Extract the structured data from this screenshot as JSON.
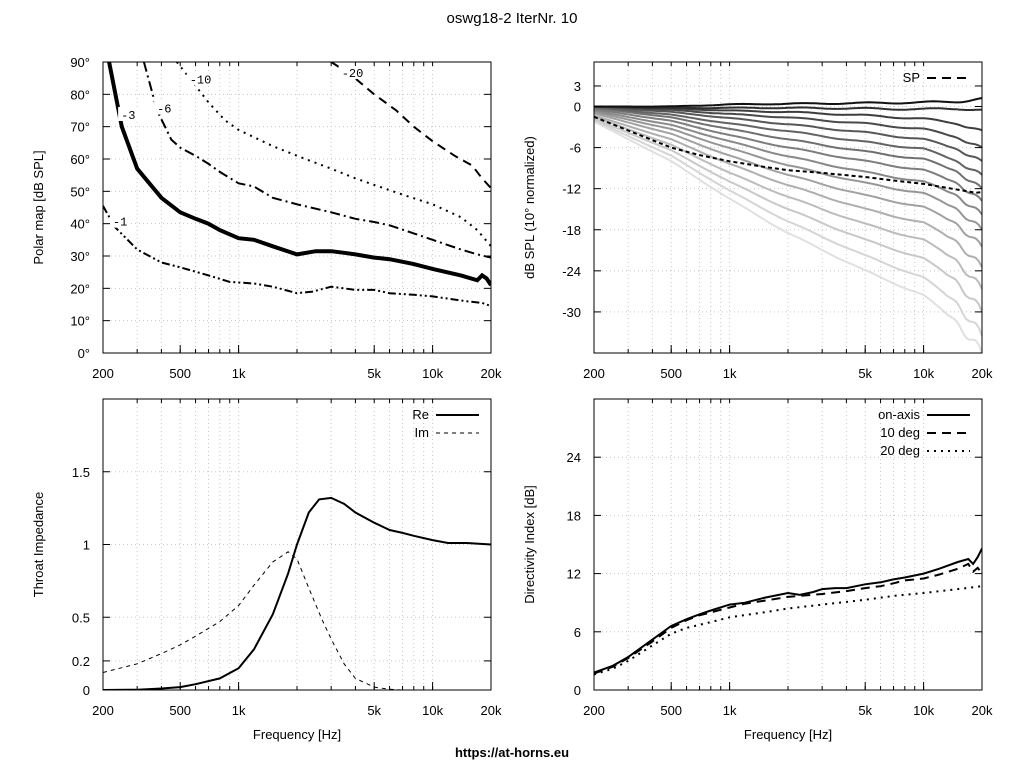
{
  "page": {
    "title": "oswg18-2 IterNr. 10",
    "footer": "https://at-horns.eu"
  },
  "chart_data": [
    {
      "id": "polar",
      "type": "line",
      "xscale": "log",
      "xlim": [
        200,
        20000
      ],
      "ylim": [
        0,
        90
      ],
      "xticks": [
        200,
        500,
        1000,
        5000,
        10000,
        20000
      ],
      "xticklabels": [
        "200",
        "500",
        "1k",
        "5k",
        "10k",
        "20k"
      ],
      "yticks": [
        0,
        10,
        20,
        30,
        40,
        50,
        60,
        70,
        80,
        90
      ],
      "yticklabels": [
        "0°",
        "10°",
        "20°",
        "30°",
        "40°",
        "50°",
        "60°",
        "70°",
        "80°",
        "90°"
      ],
      "xlabel": "",
      "ylabel": "Polar map [dB SPL]",
      "grid": true,
      "series": [
        {
          "label": "-1",
          "style": "dashdotdot",
          "points": [
            [
              200,
              45.5
            ],
            [
              230,
              39
            ],
            [
              300,
              32
            ],
            [
              400,
              28
            ],
            [
              500,
              26.5
            ],
            [
              700,
              24
            ],
            [
              900,
              22
            ],
            [
              1200,
              21.5
            ],
            [
              1500,
              20.5
            ],
            [
              2000,
              18.5
            ],
            [
              2400,
              19
            ],
            [
              3000,
              20.5
            ],
            [
              4000,
              19.5
            ],
            [
              5000,
              19.5
            ],
            [
              6000,
              18.5
            ],
            [
              8000,
              18
            ],
            [
              10000,
              17.5
            ],
            [
              15000,
              16
            ],
            [
              18000,
              15.5
            ],
            [
              20000,
              14.5
            ]
          ]
        },
        {
          "label": "-3",
          "style": "solid-bold",
          "points": [
            [
              215,
              90
            ],
            [
              250,
              70
            ],
            [
              300,
              57
            ],
            [
              400,
              48
            ],
            [
              500,
              43.5
            ],
            [
              600,
              41.5
            ],
            [
              700,
              40
            ],
            [
              800,
              38
            ],
            [
              1000,
              35.5
            ],
            [
              1200,
              35
            ],
            [
              1500,
              33
            ],
            [
              2000,
              30.5
            ],
            [
              2500,
              31.5
            ],
            [
              3000,
              31.5
            ],
            [
              3500,
              31
            ],
            [
              4000,
              30.5
            ],
            [
              5000,
              29.5
            ],
            [
              6000,
              29
            ],
            [
              8000,
              27.5
            ],
            [
              10000,
              26
            ],
            [
              14000,
              24
            ],
            [
              17000,
              22.5
            ],
            [
              18000,
              24
            ],
            [
              19000,
              23
            ],
            [
              20000,
              21
            ]
          ]
        },
        {
          "label": "-6",
          "style": "dashdot",
          "points": [
            [
              325,
              90
            ],
            [
              380,
              75
            ],
            [
              450,
              66
            ],
            [
              500,
              63.5
            ],
            [
              600,
              61
            ],
            [
              700,
              58.5
            ],
            [
              800,
              56
            ],
            [
              1000,
              52.5
            ],
            [
              1200,
              51.5
            ],
            [
              1500,
              48
            ],
            [
              2000,
              46
            ],
            [
              3000,
              43.5
            ],
            [
              4000,
              41.5
            ],
            [
              5000,
              40.5
            ],
            [
              6000,
              39.5
            ],
            [
              8000,
              37
            ],
            [
              10000,
              35
            ],
            [
              14000,
              32
            ],
            [
              17000,
              30.5
            ],
            [
              20000,
              29.5
            ]
          ]
        },
        {
          "label": "-10",
          "style": "dotted",
          "points": [
            [
              480,
              90
            ],
            [
              560,
              85
            ],
            [
              700,
              77.5
            ],
            [
              850,
              72
            ],
            [
              1000,
              69
            ],
            [
              1500,
              64
            ],
            [
              2000,
              61
            ],
            [
              3000,
              57
            ],
            [
              4000,
              54
            ],
            [
              5000,
              52
            ],
            [
              7000,
              49
            ],
            [
              10000,
              46
            ],
            [
              14000,
              42
            ],
            [
              17000,
              38
            ],
            [
              20000,
              33
            ]
          ]
        },
        {
          "label": "-20",
          "style": "dashed",
          "points": [
            [
              3000,
              90
            ],
            [
              3800,
              86
            ],
            [
              5000,
              80
            ],
            [
              6500,
              75
            ],
            [
              8000,
              70
            ],
            [
              10000,
              65.5
            ],
            [
              13000,
              61
            ],
            [
              16000,
              58
            ],
            [
              18000,
              54
            ],
            [
              20000,
              51
            ]
          ]
        }
      ],
      "annotations": [
        {
          "text": "-1",
          "x": 225,
          "y": 40
        },
        {
          "text": "-3",
          "x": 248,
          "y": 73
        },
        {
          "text": "-6",
          "x": 380,
          "y": 75
        },
        {
          "text": "-10",
          "x": 560,
          "y": 84
        },
        {
          "text": "-20",
          "x": 3400,
          "y": 86
        }
      ]
    },
    {
      "id": "spl",
      "type": "line",
      "xscale": "log",
      "xlim": [
        200,
        20000
      ],
      "ylim": [
        -36,
        6.5
      ],
      "xticks": [
        200,
        500,
        1000,
        5000,
        10000,
        20000
      ],
      "xticklabels": [
        "200",
        "500",
        "1k",
        "5k",
        "10k",
        "20k"
      ],
      "yticks": [
        3,
        0,
        -6,
        -12,
        -18,
        -24,
        -30
      ],
      "yticklabels": [
        "3",
        "0",
        "-6",
        "-12",
        "-18",
        "-24",
        "-30"
      ],
      "xlabel": "",
      "ylabel": "dB SPL (10° normalized)",
      "grid": true,
      "legend": {
        "position": "top-right",
        "entries": [
          {
            "label": "SP",
            "style": "dashed"
          }
        ]
      },
      "family_anchor_x": [
        200,
        500,
        1000,
        2000,
        5000,
        10000,
        15000,
        20000
      ],
      "family": [
        {
          "y": [
            0,
            0,
            0.3,
            0.4,
            0.5,
            0.6,
            0.7,
            1.2
          ],
          "color": "#111111"
        },
        {
          "y": [
            0,
            -0.2,
            -0.2,
            -0.2,
            -0.3,
            -0.4,
            -0.3,
            -0.5
          ],
          "color": "#303030"
        },
        {
          "y": [
            0,
            -0.3,
            -0.6,
            -0.8,
            -1.3,
            -1.8,
            -2.5,
            -3.5
          ],
          "color": "#3d3d3d"
        },
        {
          "y": [
            0,
            -0.5,
            -1.1,
            -1.6,
            -2.5,
            -3.3,
            -4.5,
            -6
          ],
          "color": "#4a4a4a"
        },
        {
          "y": [
            0,
            -0.8,
            -1.7,
            -2.6,
            -3.8,
            -4.8,
            -6.2,
            -8
          ],
          "color": "#575757"
        },
        {
          "y": [
            -0.1,
            -1.2,
            -2.5,
            -3.6,
            -5.2,
            -6.2,
            -8,
            -10
          ],
          "color": "#636363"
        },
        {
          "y": [
            -0.2,
            -1.6,
            -3.3,
            -4.8,
            -6.6,
            -7.7,
            -9.5,
            -12
          ],
          "color": "#707070"
        },
        {
          "y": [
            -0.4,
            -2.1,
            -4.2,
            -6,
            -8,
            -9.3,
            -11.2,
            -13.8
          ],
          "color": "#7d7d7d"
        },
        {
          "y": [
            -0.6,
            -2.7,
            -5.1,
            -7.3,
            -9.6,
            -11,
            -13,
            -15.8
          ],
          "color": "#898989"
        },
        {
          "y": [
            -0.8,
            -3.3,
            -6.1,
            -8.6,
            -11.2,
            -12.7,
            -15,
            -18
          ],
          "color": "#969696"
        },
        {
          "y": [
            -1,
            -4,
            -7.2,
            -10,
            -13,
            -14.7,
            -17.2,
            -20.5
          ],
          "color": "#a2a2a2"
        },
        {
          "y": [
            -1.3,
            -4.8,
            -8.4,
            -11.5,
            -15,
            -17,
            -19.8,
            -23.5
          ],
          "color": "#afafaf"
        },
        {
          "y": [
            -1.5,
            -5.6,
            -9.7,
            -13.2,
            -17.2,
            -19.5,
            -22.6,
            -26.7
          ],
          "color": "#bcbcbc"
        },
        {
          "y": [
            -1.8,
            -6.4,
            -11,
            -15,
            -19.5,
            -22.2,
            -25.6,
            -30
          ],
          "color": "#c8c8c8"
        },
        {
          "y": [
            -2,
            -7.2,
            -12.3,
            -16.8,
            -21.8,
            -25,
            -28.8,
            -33.5
          ],
          "color": "#d5d5d5"
        },
        {
          "y": [
            -2.2,
            -8,
            -13.5,
            -18.5,
            -24,
            -27.6,
            -31.6,
            -36
          ],
          "color": "#e0e0e0"
        }
      ],
      "sp": {
        "label": "SP",
        "x": [
          200,
          300,
          500,
          700,
          1000,
          1500,
          2000,
          3000,
          5000,
          7000,
          10000,
          14000,
          17000,
          18500,
          20000
        ],
        "y": [
          -1.5,
          -3.5,
          -6,
          -7.1,
          -8,
          -8.8,
          -9.3,
          -9.7,
          -10.3,
          -10.8,
          -11.3,
          -12,
          -12.4,
          -12.6,
          -12.5
        ]
      }
    },
    {
      "id": "impedance",
      "type": "line",
      "xscale": "log",
      "xlim": [
        200,
        20000
      ],
      "ylim": [
        0,
        2
      ],
      "xticks": [
        200,
        500,
        1000,
        5000,
        10000,
        20000
      ],
      "xticklabels": [
        "200",
        "500",
        "1k",
        "5k",
        "10k",
        "20k"
      ],
      "yticks": [
        0,
        0.2,
        0.5,
        1,
        1.5
      ],
      "yticklabels": [
        "0",
        "0.2",
        "0.5",
        "1",
        "1.5"
      ],
      "xlabel": "Frequency [Hz]",
      "ylabel": "Throat Impedance",
      "grid": true,
      "legend": {
        "position": "top-right",
        "entries": [
          {
            "label": "Re",
            "style": "solid"
          },
          {
            "label": "Im",
            "style": "thin-dashed"
          }
        ]
      },
      "series": [
        {
          "name": "Re",
          "style": "solid",
          "x": [
            200,
            300,
            400,
            500,
            600,
            800,
            1000,
            1200,
            1500,
            1800,
            2000,
            2300,
            2600,
            3000,
            3500,
            4000,
            5000,
            6000,
            7000,
            8000,
            10000,
            12000,
            15000,
            20000
          ],
          "y": [
            0,
            0.002,
            0.01,
            0.02,
            0.04,
            0.08,
            0.15,
            0.28,
            0.52,
            0.8,
            1.0,
            1.22,
            1.31,
            1.32,
            1.28,
            1.22,
            1.15,
            1.1,
            1.08,
            1.06,
            1.03,
            1.01,
            1.01,
            1.0
          ]
        },
        {
          "name": "Im",
          "style": "thin-dashed",
          "x": [
            200,
            300,
            400,
            500,
            600,
            800,
            1000,
            1200,
            1500,
            1800,
            2000,
            2300,
            2700,
            3000,
            3500,
            4000,
            5000,
            6000,
            7000
          ],
          "y": [
            0.12,
            0.18,
            0.25,
            0.31,
            0.37,
            0.47,
            0.58,
            0.72,
            0.88,
            0.95,
            0.9,
            0.7,
            0.48,
            0.35,
            0.18,
            0.08,
            0.02,
            0.005,
            0
          ]
        }
      ]
    },
    {
      "id": "di",
      "type": "line",
      "xscale": "log",
      "xlim": [
        200,
        20000
      ],
      "ylim": [
        0,
        30
      ],
      "xticks": [
        200,
        500,
        1000,
        5000,
        10000,
        20000
      ],
      "xticklabels": [
        "200",
        "500",
        "1k",
        "5k",
        "10k",
        "20k"
      ],
      "yticks": [
        0,
        6,
        12,
        18,
        24
      ],
      "yticklabels": [
        "0",
        "6",
        "12",
        "18",
        "24"
      ],
      "xlabel": "Frequency [Hz]",
      "ylabel": "Directivity Index [dB]",
      "grid": true,
      "legend": {
        "position": "top-right",
        "entries": [
          {
            "label": "on-axis",
            "style": "solid"
          },
          {
            "label": "10 deg",
            "style": "dashed"
          },
          {
            "label": "20 deg",
            "style": "dotted"
          }
        ]
      },
      "series": [
        {
          "name": "on-axis",
          "style": "solid",
          "x": [
            200,
            250,
            300,
            400,
            500,
            600,
            700,
            800,
            1000,
            1200,
            1500,
            2000,
            2300,
            2700,
            3000,
            3500,
            4000,
            5000,
            6000,
            7000,
            8000,
            10000,
            12000,
            15000,
            17000,
            18000,
            19000,
            20000
          ],
          "y": [
            1.8,
            2.5,
            3.4,
            5.2,
            6.6,
            7.3,
            7.8,
            8.2,
            8.8,
            9.0,
            9.5,
            10.0,
            9.8,
            10.1,
            10.4,
            10.5,
            10.5,
            10.9,
            11.1,
            11.4,
            11.6,
            12.0,
            12.5,
            13.2,
            13.5,
            13.0,
            13.7,
            14.6
          ]
        },
        {
          "name": "10 deg",
          "style": "dashed",
          "x": [
            200,
            250,
            300,
            400,
            500,
            600,
            700,
            800,
            1000,
            1200,
            1500,
            2000,
            3000,
            4000,
            5000,
            6000,
            7000,
            8000,
            10000,
            12000,
            15000,
            17000,
            18000,
            19000,
            20000
          ],
          "y": [
            1.7,
            2.4,
            3.3,
            5.0,
            6.4,
            7.2,
            7.7,
            8.0,
            8.5,
            8.9,
            9.2,
            9.6,
            9.9,
            10.2,
            10.5,
            10.7,
            11.0,
            11.3,
            11.5,
            11.9,
            12.5,
            13.0,
            12.2,
            12.6,
            12.0
          ]
        },
        {
          "name": "20 deg",
          "style": "dotted",
          "x": [
            200,
            250,
            300,
            400,
            500,
            600,
            800,
            1000,
            1500,
            2000,
            3000,
            5000,
            7000,
            10000,
            15000,
            20000
          ],
          "y": [
            1.6,
            2.2,
            3.0,
            4.6,
            5.8,
            6.4,
            7.0,
            7.5,
            8.0,
            8.4,
            8.8,
            9.3,
            9.7,
            10.0,
            10.4,
            10.7
          ]
        }
      ]
    }
  ]
}
